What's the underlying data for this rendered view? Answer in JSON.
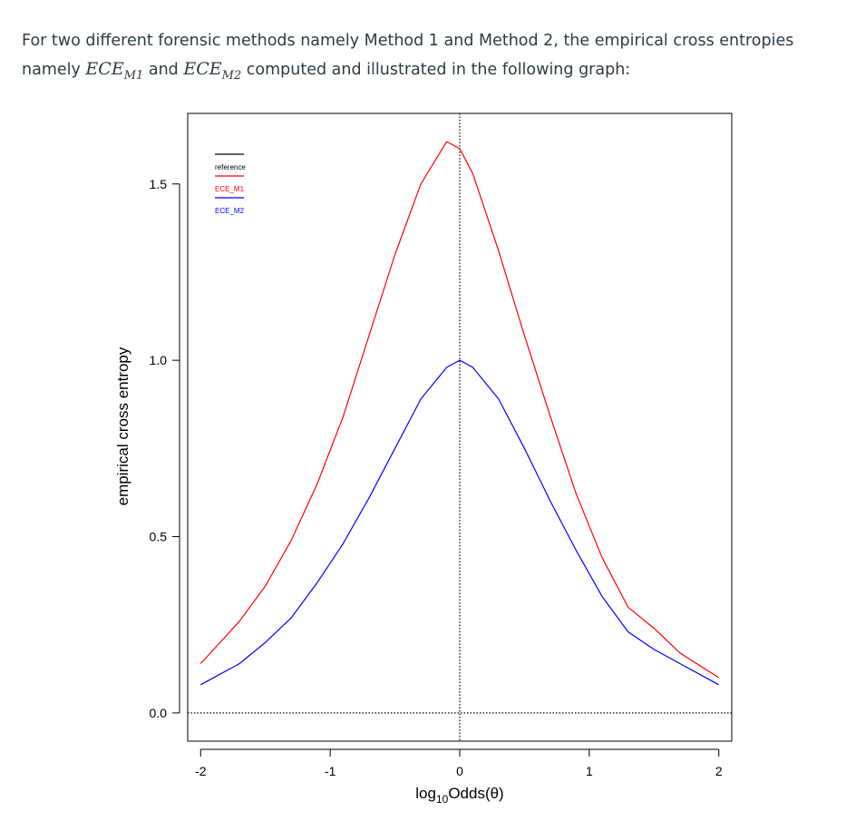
{
  "question": {
    "part1": "For two different forensic methods namely Method 1 and Method 2, the empirical cross entropies",
    "part2": "namely ",
    "ece_base_1": "ECE",
    "ece_sub_1": "M1",
    "part3": " and ",
    "ece_base_2": "ECE",
    "ece_sub_2": "M2",
    "part4": " computed and illustrated in the following graph:"
  },
  "chart_data": {
    "type": "line",
    "title": "",
    "xlabel_prefix": "log",
    "xlabel_sub": "10",
    "xlabel_suffix": "Odds(θ)",
    "ylabel": "empirical cross entropy",
    "xlim": [
      -2.1,
      2.1
    ],
    "ylim": [
      -0.08,
      1.7
    ],
    "xticks": [
      -2,
      -1,
      0,
      1,
      2
    ],
    "xtick_labels": [
      "-2",
      "-1",
      "0",
      "1",
      "2"
    ],
    "yticks": [
      0.0,
      0.5,
      1.0,
      1.5
    ],
    "ytick_labels": [
      "0.0",
      "0.5",
      "1.0",
      "1.5"
    ],
    "legend": {
      "placement": "top-left",
      "entries": [
        {
          "label": "reference",
          "color": "#000000"
        },
        {
          "label": "ECE_M1",
          "color": "#ff0000"
        },
        {
          "label": "ECE_M2",
          "color": "#0000ff"
        }
      ]
    },
    "reference_lines": {
      "horizontal_y": 0.0,
      "vertical_x": 0.0,
      "style": "dotted",
      "color": "#000000"
    },
    "series": [
      {
        "name": "ECE_M1",
        "color": "#ff0000",
        "x": [
          -2.0,
          -1.7,
          -1.5,
          -1.3,
          -1.1,
          -0.9,
          -0.7,
          -0.5,
          -0.3,
          -0.1,
          0.0,
          0.1,
          0.3,
          0.5,
          0.7,
          0.9,
          1.1,
          1.3,
          1.5,
          1.7,
          2.0
        ],
        "y": [
          0.14,
          0.26,
          0.36,
          0.49,
          0.65,
          0.84,
          1.07,
          1.3,
          1.5,
          1.62,
          1.6,
          1.53,
          1.31,
          1.07,
          0.84,
          0.62,
          0.44,
          0.3,
          0.24,
          0.17,
          0.1
        ]
      },
      {
        "name": "ECE_M2",
        "color": "#0000ff",
        "x": [
          -2.0,
          -1.7,
          -1.5,
          -1.3,
          -1.1,
          -0.9,
          -0.7,
          -0.5,
          -0.3,
          -0.1,
          0.0,
          0.1,
          0.3,
          0.5,
          0.7,
          0.9,
          1.1,
          1.3,
          1.5,
          1.7,
          2.0
        ],
        "y": [
          0.08,
          0.14,
          0.2,
          0.27,
          0.37,
          0.48,
          0.61,
          0.75,
          0.89,
          0.98,
          1.0,
          0.98,
          0.89,
          0.75,
          0.6,
          0.46,
          0.33,
          0.23,
          0.18,
          0.14,
          0.08
        ]
      }
    ]
  }
}
